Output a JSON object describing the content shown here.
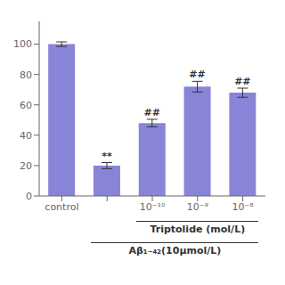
{
  "chart_data": {
    "type": "bar",
    "categories": [
      "control",
      null,
      "10⁻¹⁰",
      "10⁻⁹",
      "10⁻⁸"
    ],
    "values": [
      100,
      20,
      48,
      72,
      68
    ],
    "errors": [
      1.5,
      2.0,
      2.5,
      3.5,
      3.0
    ],
    "annotations": [
      null,
      "**",
      "##",
      "##",
      "##"
    ],
    "group_labels": [
      "Triptolide (mol/L)",
      "Aβ₁₋₄₂(10μmol/L)"
    ],
    "color": "#8884d8",
    "ylim": [
      0,
      115
    ],
    "yticks": [
      0,
      20,
      40,
      60,
      80,
      100
    ],
    "grid": false
  }
}
